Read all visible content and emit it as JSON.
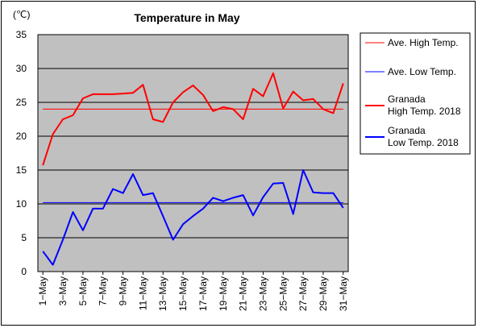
{
  "chart_data": {
    "type": "line",
    "title": "Temperature in May",
    "unit_label": "(℃)",
    "ylim": [
      0,
      35
    ],
    "y_ticks": [
      "0",
      "5",
      "10",
      "15",
      "20",
      "25",
      "30",
      "35"
    ],
    "x_tick_labels": [
      "1−May",
      "3−May",
      "5−May",
      "7−May",
      "9−May",
      "11−May",
      "13−May",
      "15−May",
      "17−May",
      "19−May",
      "21−May",
      "23−May",
      "25−May",
      "27−May",
      "29−May",
      "31−May"
    ],
    "x": [
      1,
      2,
      3,
      4,
      5,
      6,
      7,
      8,
      9,
      10,
      11,
      12,
      13,
      14,
      15,
      16,
      17,
      18,
      19,
      20,
      21,
      22,
      23,
      24,
      25,
      26,
      27,
      28,
      29,
      30,
      31
    ],
    "grid": true,
    "legend_position": "right",
    "series": [
      {
        "name": "Ave. High Temp.",
        "color": "#ff0000",
        "style": "thin",
        "constant": 24.0
      },
      {
        "name": "Ave. Low Temp.",
        "color": "#0000ff",
        "style": "thin",
        "constant": 10.2
      },
      {
        "name": "Granada\nHigh Temp. 2018",
        "color": "#ff0000",
        "style": "thick",
        "values": [
          15.7,
          20.3,
          22.5,
          23.1,
          25.6,
          26.2,
          26.2,
          26.2,
          26.3,
          26.4,
          27.6,
          22.5,
          22.1,
          25.0,
          26.5,
          27.5,
          26.1,
          23.7,
          24.3,
          24.0,
          22.5,
          27.0,
          25.9,
          29.3,
          24.1,
          26.6,
          25.3,
          25.5,
          24.0,
          23.4,
          27.8
        ]
      },
      {
        "name": "Granada\nLow Temp. 2018",
        "color": "#0000ff",
        "style": "thick",
        "values": [
          3.0,
          1.0,
          4.7,
          8.8,
          6.1,
          9.3,
          9.3,
          12.2,
          11.6,
          14.4,
          11.3,
          11.6,
          8.2,
          4.7,
          7.0,
          8.2,
          9.3,
          10.9,
          10.4,
          10.9,
          11.3,
          8.3,
          11.0,
          13.0,
          13.1,
          8.5,
          15.0,
          11.7,
          11.6,
          11.6,
          9.4
        ]
      }
    ]
  }
}
